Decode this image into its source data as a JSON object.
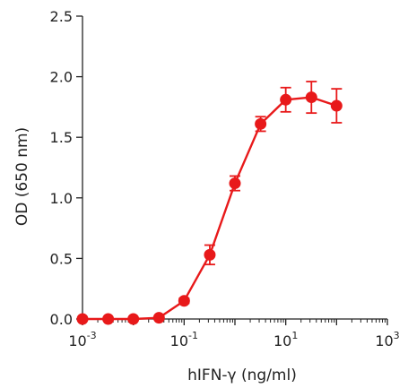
{
  "chart_data": {
    "type": "scatter",
    "title": "",
    "xlabel": "hIFN-γ (ng/ml)",
    "ylabel": "OD (650 nm)",
    "x_scale": "log",
    "xlim": [
      0.001,
      1000
    ],
    "ylim": [
      0.0,
      2.5
    ],
    "grid": false,
    "line_color": "#e8191a",
    "marker_color": "#e8191a",
    "axis_color": "#222222",
    "x_ticks": [
      {
        "value": 0.001,
        "base": "10",
        "exp": "-3"
      },
      {
        "value": 0.1,
        "base": "10",
        "exp": "-1"
      },
      {
        "value": 10,
        "base": "10",
        "exp": "1"
      },
      {
        "value": 1000,
        "base": "10",
        "exp": "3"
      }
    ],
    "y_ticks": [
      {
        "value": 0.0,
        "label": "0.0"
      },
      {
        "value": 0.5,
        "label": "0.5"
      },
      {
        "value": 1.0,
        "label": "1.0"
      },
      {
        "value": 1.5,
        "label": "1.5"
      },
      {
        "value": 2.0,
        "label": "2.0"
      },
      {
        "value": 2.5,
        "label": "2.5"
      }
    ],
    "series": [
      {
        "x": [
          0.001,
          0.0032,
          0.01,
          0.032,
          0.1,
          0.32,
          1,
          3.2,
          10,
          32,
          100
        ],
        "y": [
          0.0,
          0.0,
          0.0,
          0.01,
          0.15,
          0.53,
          1.12,
          1.61,
          1.81,
          1.83,
          1.76
        ],
        "yerr": [
          0.0,
          0.0,
          0.0,
          0.01,
          0.02,
          0.08,
          0.06,
          0.06,
          0.1,
          0.13,
          0.14
        ]
      }
    ]
  }
}
